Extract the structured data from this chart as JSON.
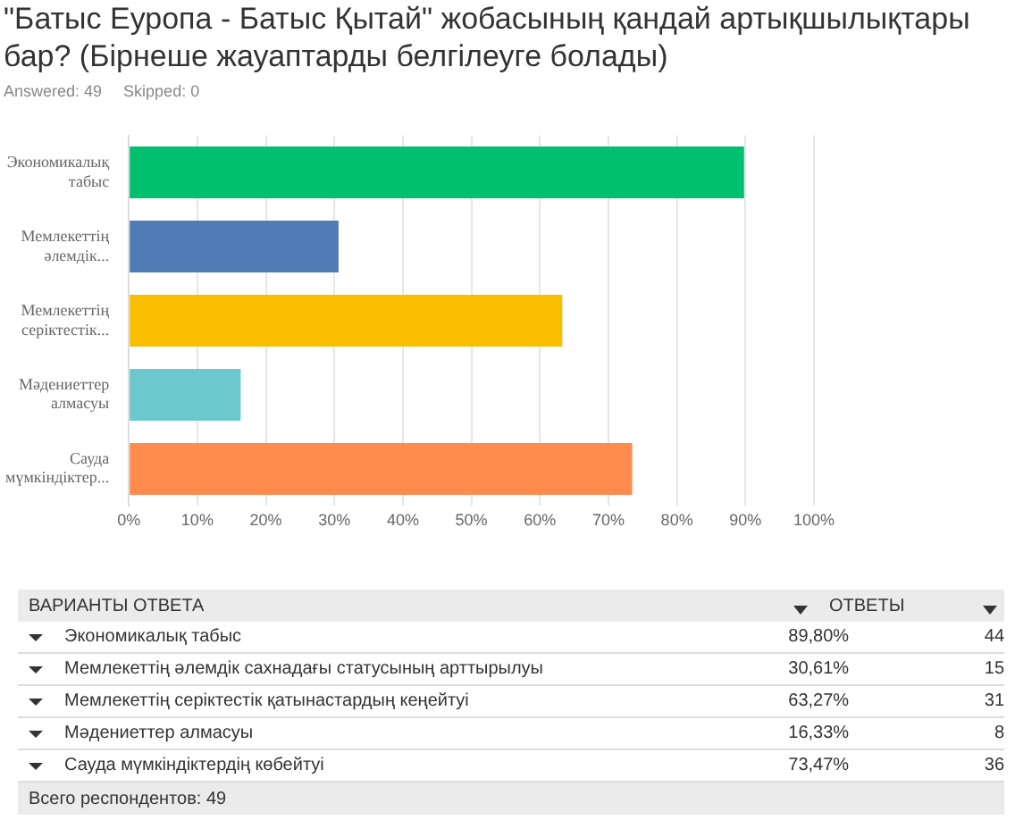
{
  "chart_data": {
    "type": "bar",
    "orientation": "horizontal",
    "title": "\"Батыс Еуропа - Батыс Қытай\" жобасының қандай артықшылықтары бар? (Бірнеше жауаптарды белгілеуге болады)",
    "categories": [
      "Экономикалық табыс",
      "Мемлекеттің әлемдік...",
      "Мемлекеттің серіктестік...",
      "Мәдениеттер алмасуы",
      "Сауда мүмкіндіктер..."
    ],
    "values": [
      89.8,
      30.61,
      63.27,
      16.33,
      73.47
    ],
    "colors": [
      "#00bf6f",
      "#507cb6",
      "#f9be00",
      "#6bc8cd",
      "#ff8b4f"
    ],
    "xlim": [
      0,
      100
    ],
    "xticks": [
      {
        "value": 0,
        "label": "0%"
      },
      {
        "value": 10,
        "label": "10%"
      },
      {
        "value": 20,
        "label": "20%"
      },
      {
        "value": 30,
        "label": "30%"
      },
      {
        "value": 40,
        "label": "40%"
      },
      {
        "value": 50,
        "label": "50%"
      },
      {
        "value": 60,
        "label": "60%"
      },
      {
        "value": 70,
        "label": "70%"
      },
      {
        "value": 80,
        "label": "80%"
      },
      {
        "value": 90,
        "label": "90%"
      },
      {
        "value": 100,
        "label": "100%"
      }
    ],
    "grid": "x",
    "legend": false,
    "annotations": [
      "Answered: 49",
      "Skipped: 0",
      "ВАРИАНТЫ ОТВЕТА",
      "ОТВЕТЫ",
      "Экономикалық табыс",
      "Мемлекеттің әлемдік сахнадағы статусының арттырылуы",
      "Мемлекеттің серіктестік қатынастардың кеңейтуі",
      "Мәдениеттер алмасуы",
      "Сауда мүмкіндіктердің көбейтуі",
      "89,80%",
      "30,61%",
      "63,27%",
      "16,33%",
      "73,47%",
      "44",
      "15",
      "31",
      "8",
      "36",
      "Всего респондентов: 49"
    ]
  }
}
